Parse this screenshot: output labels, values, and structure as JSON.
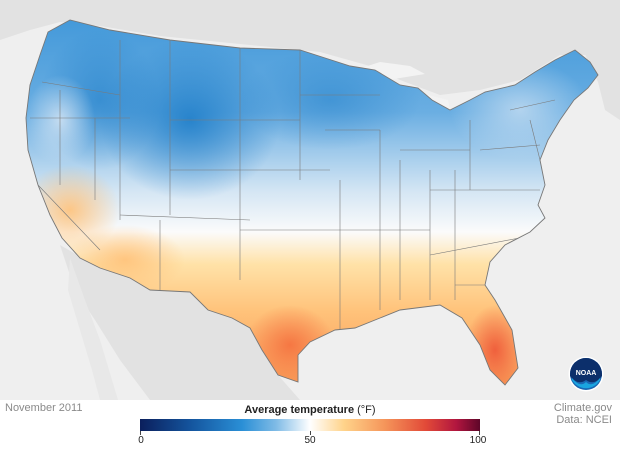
{
  "title": "",
  "date_label": "November 2011",
  "legend": {
    "title": "Average temperature",
    "unit": "(°F)",
    "scale_min": 0,
    "scale_max": 100,
    "ticks": [
      "0",
      "50",
      "100"
    ],
    "colors": [
      "#0b1f5c",
      "#14559e",
      "#2a8fd6",
      "#7fbbe6",
      "#ffffff",
      "#ffd38a",
      "#f5955a",
      "#e24a38",
      "#b2163f",
      "#5e0629"
    ]
  },
  "credits": {
    "line1": "Climate.gov",
    "line2": "Data: NCEI"
  },
  "logo": {
    "text": "NOAA",
    "icon": "noaa-logo-icon"
  },
  "map": {
    "region": "Contiguous United States",
    "colors": {
      "land_outside": "#e2e2e2",
      "water": "#f3f3f3",
      "state_border": "#7a7a7a"
    }
  }
}
